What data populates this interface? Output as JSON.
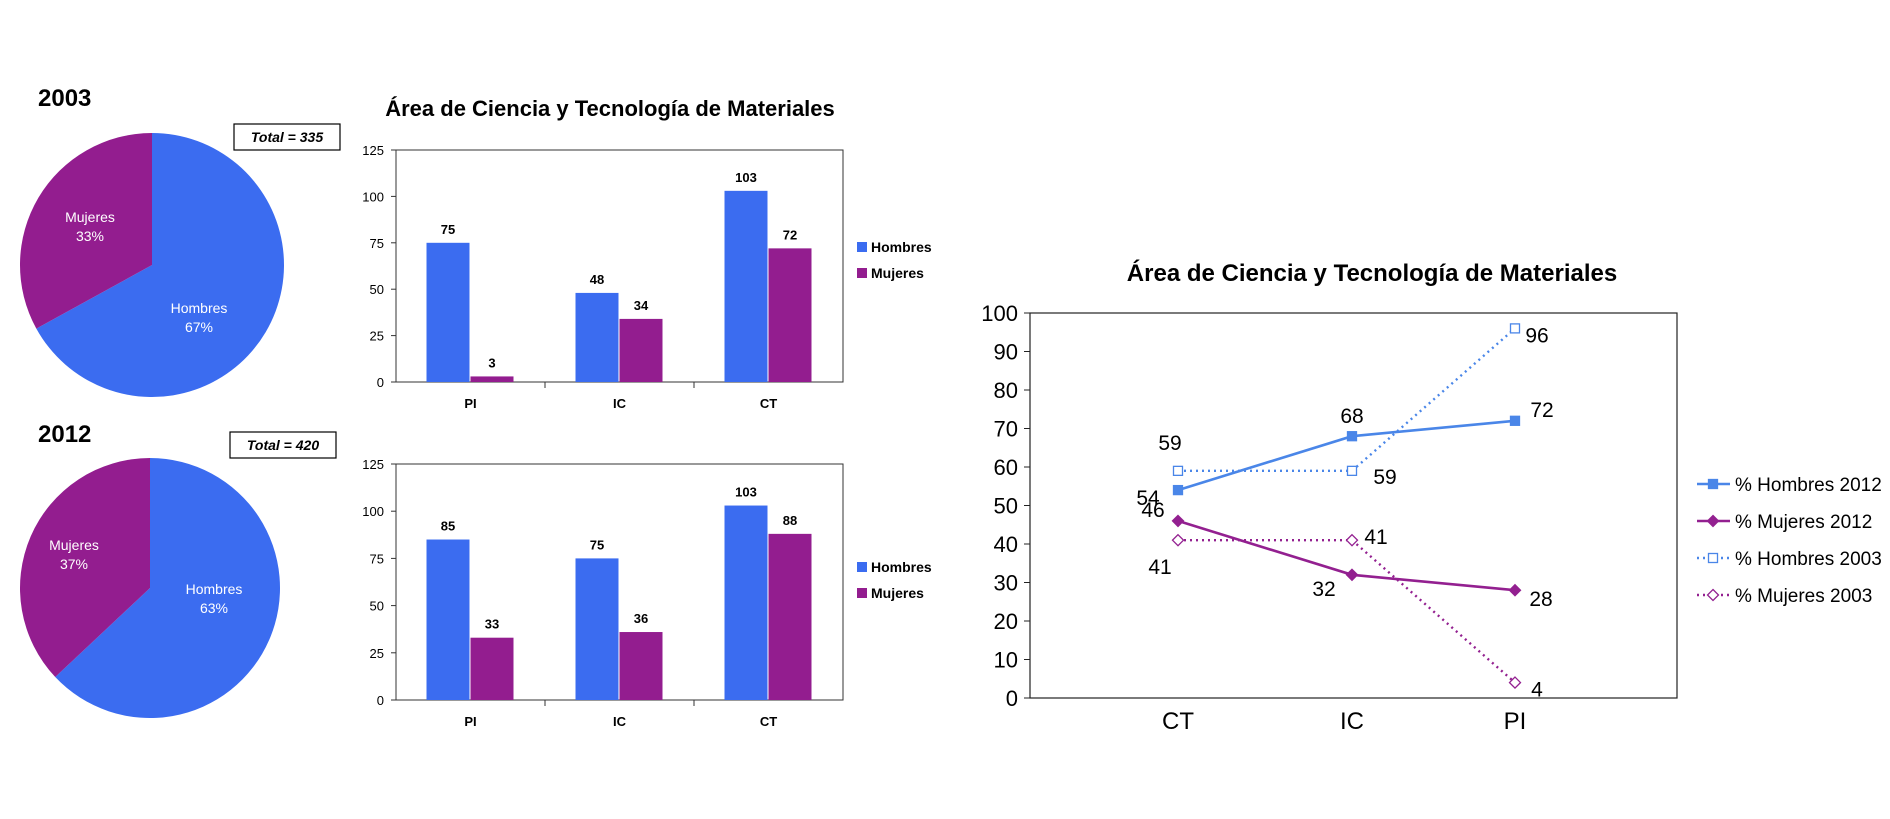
{
  "colors": {
    "hombres": "#3b6cf0",
    "mujeres": "#931d8f",
    "hombres_line": "#4a86e8",
    "mujeres_line": "#932090"
  },
  "chart_data": [
    {
      "type": "pie",
      "id": "pie2003",
      "title": "2003",
      "total_label": "Total = 335",
      "slices": [
        {
          "label": "Hombres",
          "pct_label": "67%",
          "value": 67
        },
        {
          "label": "Mujeres",
          "pct_label": "33%",
          "value": 33
        }
      ]
    },
    {
      "type": "pie",
      "id": "pie2012",
      "title": "2012",
      "total_label": "Total = 420",
      "slices": [
        {
          "label": "Hombres",
          "pct_label": "63%",
          "value": 63
        },
        {
          "label": "Mujeres",
          "pct_label": "37%",
          "value": 37
        }
      ]
    },
    {
      "type": "bar",
      "id": "bar2003",
      "title": "Área de Ciencia y Tecnología de Materiales",
      "categories": [
        "PI",
        "IC",
        "CT"
      ],
      "series": [
        {
          "name": "Hombres",
          "values": [
            75,
            48,
            103
          ]
        },
        {
          "name": "Mujeres",
          "values": [
            3,
            34,
            72
          ]
        }
      ],
      "ylim": [
        0,
        125
      ],
      "yticks": [
        0,
        25,
        50,
        75,
        100,
        125
      ],
      "legend": "right"
    },
    {
      "type": "bar",
      "id": "bar2012",
      "categories": [
        "PI",
        "IC",
        "CT"
      ],
      "series": [
        {
          "name": "Hombres",
          "values": [
            85,
            75,
            103
          ]
        },
        {
          "name": "Mujeres",
          "values": [
            33,
            36,
            88
          ]
        }
      ],
      "ylim": [
        0,
        125
      ],
      "yticks": [
        0,
        25,
        50,
        75,
        100,
        125
      ],
      "legend": "right"
    },
    {
      "type": "line",
      "id": "lineChart",
      "title": "Área de Ciencia y Tecnología de Materiales",
      "categories": [
        "CT",
        "IC",
        "PI"
      ],
      "series": [
        {
          "name": "% Hombres 2012",
          "values": [
            54,
            68,
            72
          ]
        },
        {
          "name": "% Mujeres 2012",
          "values": [
            46,
            32,
            28
          ]
        },
        {
          "name": "% Hombres 2003",
          "values": [
            59,
            59,
            96
          ]
        },
        {
          "name": "% Mujeres 2003",
          "values": [
            41,
            41,
            4
          ]
        }
      ],
      "ylim": [
        0,
        100
      ],
      "yticks": [
        0,
        10,
        20,
        30,
        40,
        50,
        60,
        70,
        80,
        90,
        100
      ],
      "legend": "right"
    }
  ]
}
